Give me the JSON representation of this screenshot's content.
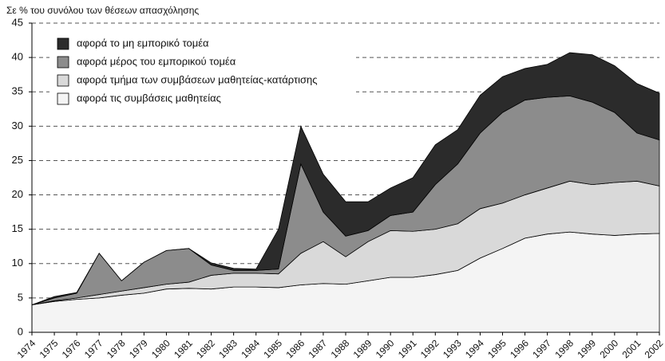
{
  "chart_data": {
    "type": "stacked_area",
    "title": "Σε % του συνόλου των θέσεων απασχόλησης",
    "categories": [
      "1974",
      "1975",
      "1976",
      "1977",
      "1978",
      "1979",
      "1980",
      "1981",
      "1982",
      "1983",
      "1984",
      "1985",
      "1986",
      "1987",
      "1988",
      "1989",
      "1990",
      "1991",
      "1992",
      "1993",
      "1994",
      "1995",
      "1996",
      "1997",
      "1998",
      "1999",
      "2000",
      "2001",
      "2002"
    ],
    "series": [
      {
        "name": "αφορά τις συμβάσεις μαθητείας",
        "color": "#f4f4f4",
        "values": [
          4.0,
          4.5,
          4.8,
          5.0,
          5.4,
          5.7,
          6.3,
          6.4,
          6.3,
          6.6,
          6.6,
          6.5,
          6.9,
          7.1,
          7.0,
          7.5,
          8.0,
          8.0,
          8.4,
          9.0,
          10.8,
          12.2,
          13.7,
          14.3,
          14.6,
          14.3,
          14.1,
          14.3,
          14.4
        ]
      },
      {
        "name": "αφορά τμήμα των συμβάσεων μαθητείας-κατάρτισης",
        "color": "#d9d9d9",
        "values": [
          0.0,
          0.1,
          0.2,
          0.5,
          0.6,
          0.8,
          0.7,
          0.9,
          2.0,
          2.0,
          2.0,
          2.0,
          4.6,
          6.1,
          4.0,
          5.7,
          6.8,
          6.7,
          6.6,
          6.8,
          7.2,
          6.6,
          6.3,
          6.7,
          7.4,
          7.2,
          7.7,
          7.7,
          6.9
        ]
      },
      {
        "name": "αφορά μέρος του εμπορικού τομέα",
        "color": "#8c8c8c",
        "values": [
          0.0,
          0.4,
          0.7,
          6.0,
          1.5,
          3.7,
          4.9,
          4.9,
          1.5,
          0.4,
          0.4,
          0.7,
          13.0,
          4.3,
          3.0,
          1.6,
          2.2,
          2.8,
          6.5,
          8.7,
          11.0,
          13.2,
          13.8,
          13.2,
          12.4,
          12.0,
          10.2,
          7.0,
          6.7
        ]
      },
      {
        "name": "αφορά το μη εμπορικό τομέα",
        "color": "#2b2b2b",
        "values": [
          0.0,
          0.2,
          0.1,
          0.0,
          0.0,
          0.0,
          0.0,
          0.0,
          0.3,
          0.3,
          0.2,
          5.8,
          5.5,
          5.5,
          5.0,
          4.2,
          4.0,
          5.0,
          5.8,
          5.0,
          5.5,
          5.2,
          4.6,
          4.8,
          6.3,
          6.9,
          6.8,
          7.2,
          6.8
        ]
      }
    ],
    "ylim": [
      0,
      45
    ],
    "yticks": [
      0,
      5,
      10,
      15,
      20,
      25,
      30,
      35,
      40,
      45
    ],
    "grid": true
  }
}
